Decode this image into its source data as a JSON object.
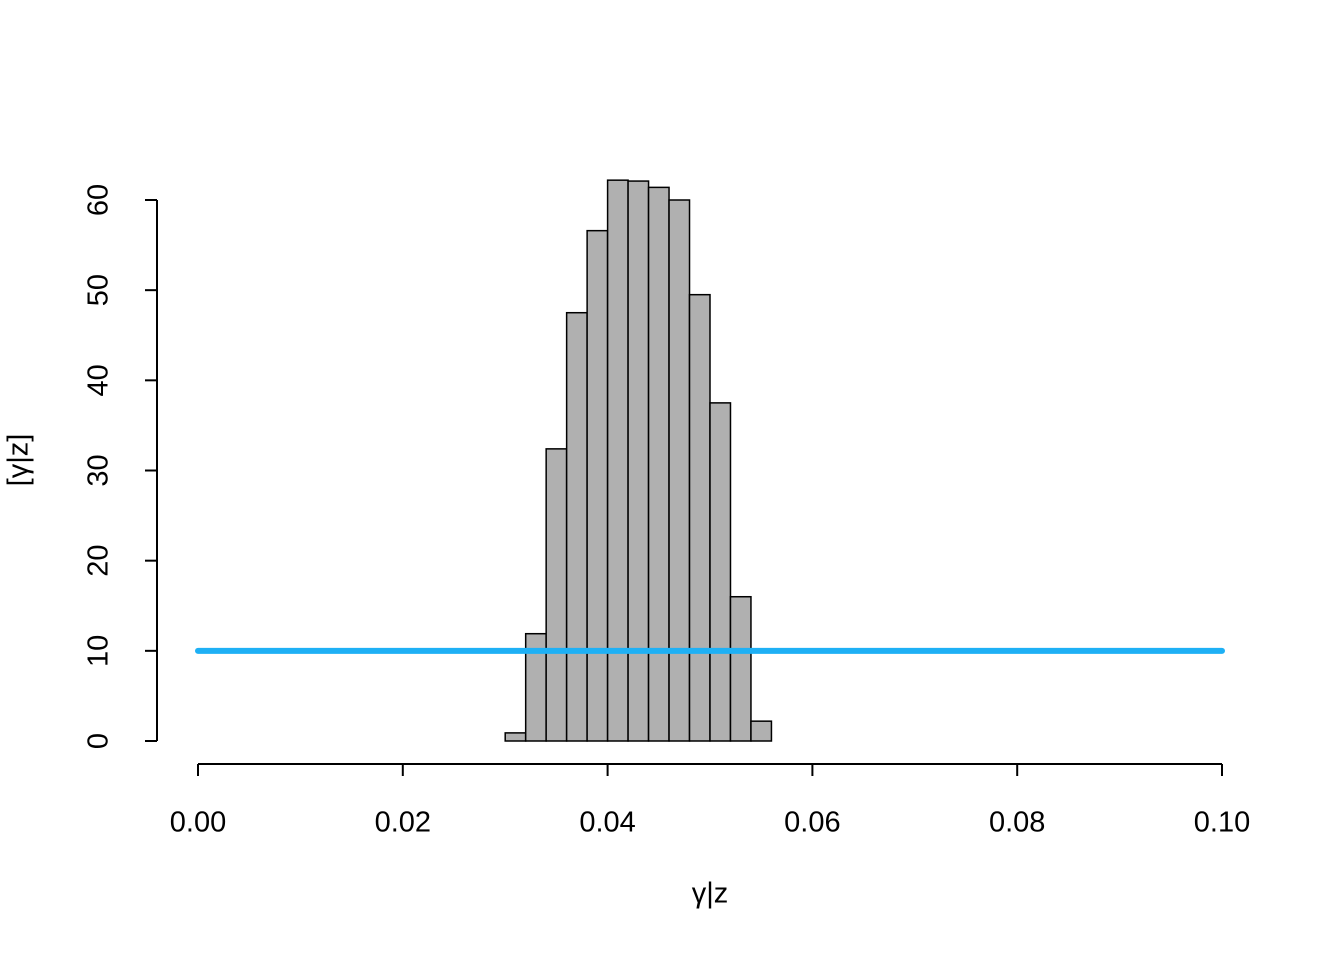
{
  "chart_data": {
    "type": "histogram",
    "xlabel": "γ|z",
    "ylabel": "[γ|z]",
    "bins": [
      0.03,
      0.032,
      0.034,
      0.036,
      0.038,
      0.04,
      0.042,
      0.044,
      0.046,
      0.048,
      0.05,
      0.052,
      0.054,
      0.056
    ],
    "counts": [
      0.9,
      11.9,
      32.4,
      47.5,
      56.6,
      62.2,
      62.1,
      61.4,
      60.0,
      49.5,
      37.5,
      16.0,
      2.2
    ],
    "color": "#b0b0b0",
    "line": {
      "x": [
        0,
        0.1
      ],
      "y": [
        10,
        10
      ],
      "color": "#1eb0f5"
    },
    "xlim": [
      0,
      0.1
    ],
    "ylim": [
      0,
      60
    ],
    "xticks": [
      {
        "value": 0,
        "label": "0.00"
      },
      {
        "value": 0.02,
        "label": "0.02"
      },
      {
        "value": 0.04,
        "label": "0.04"
      },
      {
        "value": 0.06,
        "label": "0.06"
      },
      {
        "value": 0.08,
        "label": "0.08"
      },
      {
        "value": 0.1,
        "label": "0.10"
      }
    ],
    "yticks": [
      0,
      10,
      20,
      30,
      40,
      50,
      60
    ]
  }
}
